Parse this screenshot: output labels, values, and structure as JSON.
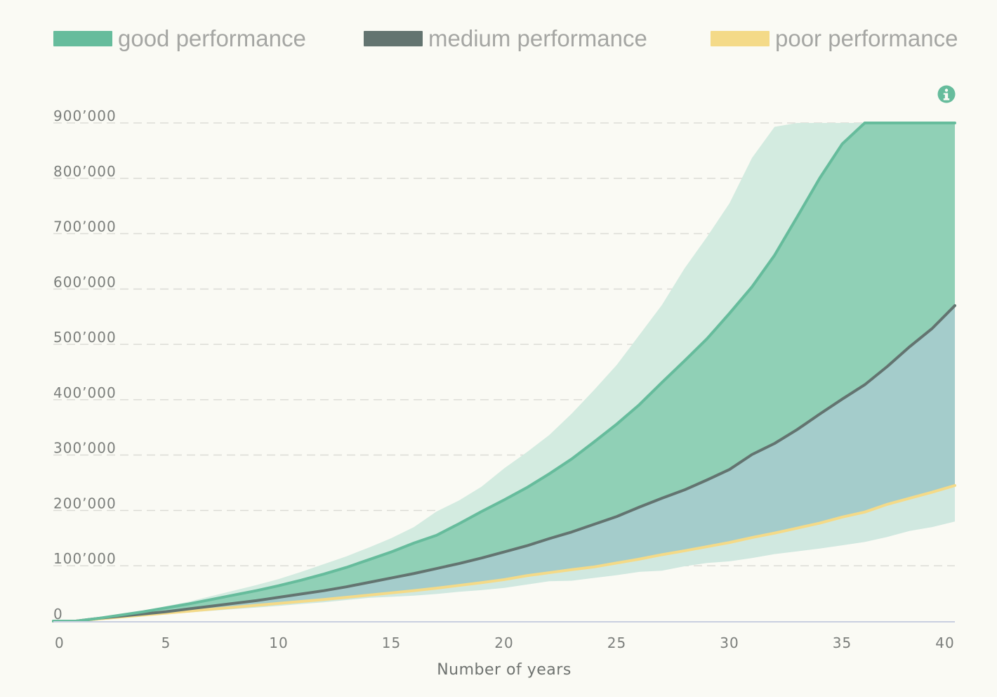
{
  "legend": [
    {
      "label": "good performance",
      "color": "#66bc9c"
    },
    {
      "label": "medium performance",
      "color": "#637470"
    },
    {
      "label": "poor performance",
      "color": "#f4da88"
    }
  ],
  "info_icon": {
    "name": "info-icon",
    "color": "#66bc9c"
  },
  "chart_data": {
    "type": "area",
    "xlabel": "Number of years",
    "ylabel": "",
    "xlim": [
      0,
      40
    ],
    "ylim": [
      0,
      900000
    ],
    "x_ticks": [
      0,
      5,
      10,
      15,
      20,
      25,
      30,
      35,
      40
    ],
    "x_tick_labels": [
      "0",
      "5",
      "10",
      "15",
      "20",
      "25",
      "30",
      "35",
      "40"
    ],
    "y_ticks": [
      0,
      100000,
      200000,
      300000,
      400000,
      500000,
      600000,
      700000,
      800000,
      900000
    ],
    "y_tick_labels": [
      "0",
      "100’000",
      "200’000",
      "300’000",
      "400’000",
      "500’000",
      "600’000",
      "700’000",
      "800’000",
      "900’000"
    ],
    "grid": true,
    "legend_position": "top",
    "x": [
      0,
      1,
      2,
      3,
      4,
      5,
      6,
      7,
      8,
      9,
      10,
      11,
      12,
      13,
      14,
      15,
      16,
      17,
      18,
      19,
      20,
      21,
      22,
      23,
      24,
      25,
      26,
      27,
      28,
      29,
      30,
      31,
      32,
      33,
      34,
      35,
      36,
      37,
      38,
      39,
      40
    ],
    "series": [
      {
        "name": "good performance",
        "color": "#66bc9c",
        "values": [
          0,
          0,
          5000,
          11000,
          17000,
          24000,
          31000,
          39000,
          47000,
          55000,
          64000,
          74000,
          85000,
          97000,
          111000,
          125000,
          141000,
          155000,
          176000,
          198000,
          219000,
          241000,
          266000,
          293000,
          324000,
          356000,
          391000,
          431000,
          470000,
          510000,
          556000,
          604000,
          661000,
          730000,
          800000,
          862000,
          900000,
          900000,
          900000,
          900000,
          900000
        ]
      },
      {
        "name": "medium performance",
        "color": "#637470",
        "values": [
          0,
          0,
          5000,
          9000,
          13000,
          17000,
          22000,
          27000,
          32000,
          37000,
          43000,
          49000,
          55000,
          62000,
          70000,
          78000,
          86000,
          95000,
          104000,
          114000,
          125000,
          136000,
          149000,
          161000,
          175000,
          189000,
          206000,
          222000,
          237000,
          255000,
          274000,
          301000,
          321000,
          346000,
          374000,
          401000,
          427000,
          460000,
          496000,
          529000,
          570000
        ]
      },
      {
        "name": "poor performance",
        "color": "#f4da88",
        "values": [
          0,
          0,
          4000,
          7500,
          11000,
          14500,
          18000,
          21500,
          25000,
          28500,
          32000,
          35500,
          39000,
          43000,
          47000,
          51000,
          55000,
          59500,
          64500,
          69500,
          75000,
          82000,
          87500,
          93000,
          98000,
          105000,
          112000,
          120000,
          127000,
          134500,
          142000,
          151000,
          159000,
          168000,
          177000,
          188000,
          197000,
          211000,
          222000,
          233000,
          245000
        ]
      }
    ],
    "bands": [
      {
        "name": "good upper band",
        "color": "#d3ebe0",
        "lower": [
          0,
          0,
          5000,
          11000,
          17000,
          24000,
          31000,
          39000,
          47000,
          55000,
          64000,
          74000,
          85000,
          97000,
          111000,
          125000,
          141000,
          155000,
          176000,
          198000,
          219000,
          241000,
          266000,
          293000,
          324000,
          356000,
          391000,
          431000,
          470000,
          510000,
          556000,
          604000,
          661000,
          730000,
          800000,
          862000,
          900000,
          900000,
          900000,
          900000,
          900000
        ],
        "upper": [
          0,
          0,
          6000,
          12000,
          19000,
          27000,
          35000,
          45000,
          55000,
          65000,
          76000,
          89000,
          103000,
          117000,
          133000,
          150000,
          170000,
          198000,
          218000,
          243000,
          276000,
          305000,
          336000,
          375000,
          418000,
          463000,
          517000,
          571000,
          637000,
          694000,
          755000,
          837000,
          893000,
          900000,
          900000,
          900000,
          900000,
          900000,
          900000,
          900000,
          900000
        ]
      },
      {
        "name": "good to medium band",
        "color": "#90d0b6",
        "lower": [
          0,
          0,
          5000,
          9000,
          13000,
          17000,
          22000,
          27000,
          32000,
          37000,
          43000,
          49000,
          55000,
          62000,
          70000,
          78000,
          86000,
          95000,
          104000,
          114000,
          125000,
          136000,
          149000,
          161000,
          175000,
          189000,
          206000,
          222000,
          237000,
          255000,
          274000,
          301000,
          321000,
          346000,
          374000,
          401000,
          427000,
          460000,
          496000,
          529000,
          570000
        ],
        "upper": [
          0,
          0,
          5000,
          11000,
          17000,
          24000,
          31000,
          39000,
          47000,
          55000,
          64000,
          74000,
          85000,
          97000,
          111000,
          125000,
          141000,
          155000,
          176000,
          198000,
          219000,
          241000,
          266000,
          293000,
          324000,
          356000,
          391000,
          431000,
          470000,
          510000,
          556000,
          604000,
          661000,
          730000,
          800000,
          862000,
          900000,
          900000,
          900000,
          900000,
          900000
        ]
      },
      {
        "name": "medium to poor band",
        "color": "#a4cccb",
        "lower": [
          0,
          0,
          4000,
          7500,
          11000,
          14500,
          18000,
          21500,
          25000,
          28500,
          32000,
          35500,
          39000,
          43000,
          47000,
          51000,
          55000,
          59500,
          64500,
          69500,
          75000,
          82000,
          87500,
          93000,
          98000,
          105000,
          112000,
          120000,
          127000,
          134500,
          142000,
          151000,
          159000,
          168000,
          177000,
          188000,
          197000,
          211000,
          222000,
          233000,
          245000
        ],
        "upper": [
          0,
          0,
          5000,
          9000,
          13000,
          17000,
          22000,
          27000,
          32000,
          37000,
          43000,
          49000,
          55000,
          62000,
          70000,
          78000,
          86000,
          95000,
          104000,
          114000,
          125000,
          136000,
          149000,
          161000,
          175000,
          189000,
          206000,
          222000,
          237000,
          255000,
          274000,
          301000,
          321000,
          346000,
          374000,
          401000,
          427000,
          460000,
          496000,
          529000,
          570000
        ]
      },
      {
        "name": "poor lower band",
        "color": "#d0e8e0",
        "lower": [
          0,
          0,
          3500,
          6500,
          9500,
          12500,
          15500,
          18500,
          21500,
          24500,
          27500,
          31000,
          34000,
          38000,
          42000,
          44000,
          46000,
          49000,
          53000,
          56000,
          60000,
          66000,
          72000,
          73000,
          78000,
          83000,
          89000,
          91000,
          99000,
          105000,
          108000,
          114000,
          121000,
          126000,
          131000,
          137000,
          143000,
          152000,
          163000,
          170000,
          180000
        ],
        "upper": [
          0,
          0,
          4000,
          7500,
          11000,
          14500,
          18000,
          21500,
          25000,
          28500,
          32000,
          35500,
          39000,
          43000,
          47000,
          51000,
          55000,
          59500,
          64500,
          69500,
          75000,
          82000,
          87500,
          93000,
          98000,
          105000,
          112000,
          120000,
          127000,
          134500,
          142000,
          151000,
          159000,
          168000,
          177000,
          188000,
          197000,
          211000,
          222000,
          233000,
          245000
        ]
      }
    ]
  }
}
